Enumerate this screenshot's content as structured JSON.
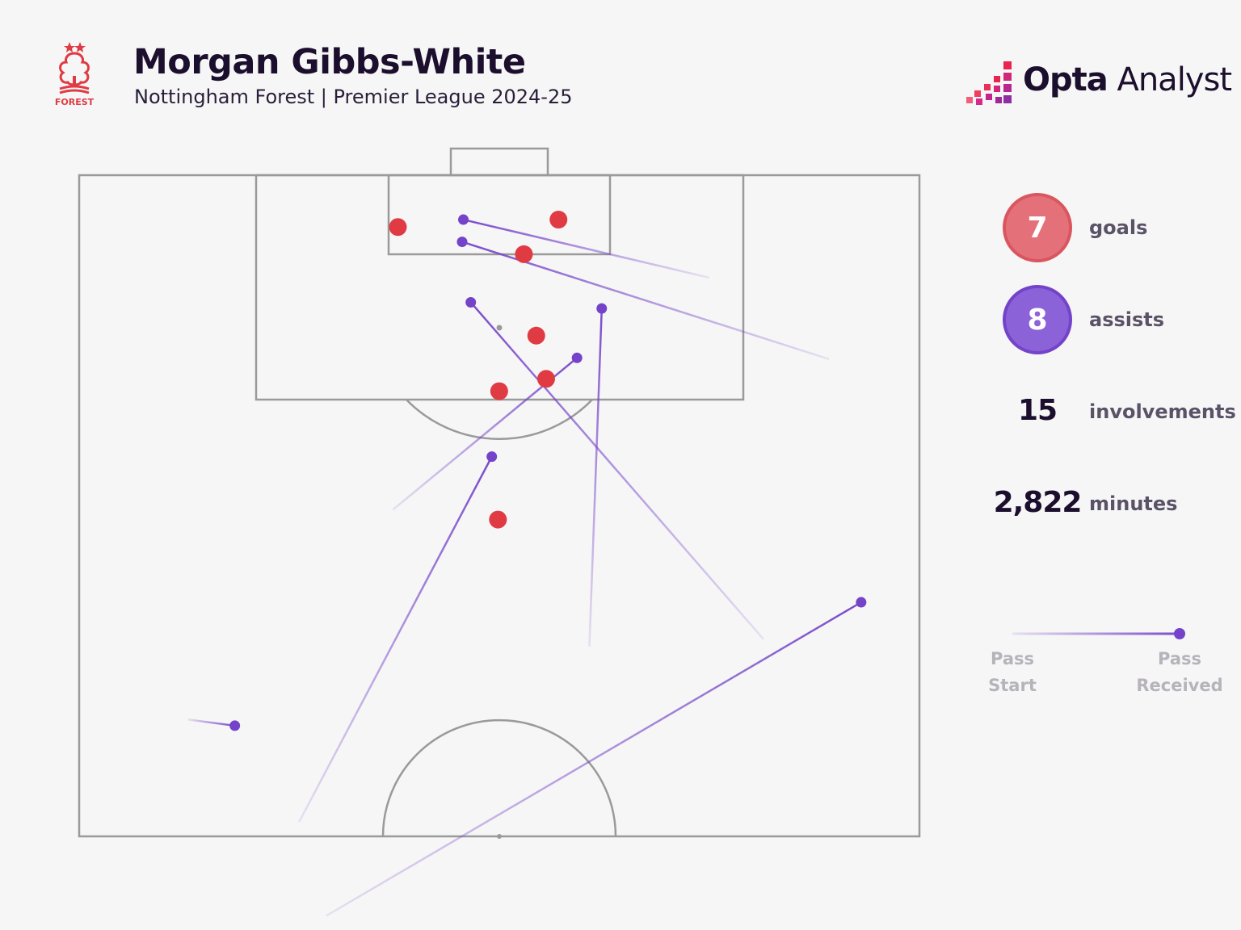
{
  "header": {
    "title": "Morgan Gibbs-White",
    "subtitle": "Nottingham Forest | Premier League 2024-25",
    "club_crest_text": "FOREST",
    "brand_bold": "Opta",
    "brand_light": "Analyst"
  },
  "stats": {
    "goals_value": "7",
    "goals_label": "goals",
    "assists_value": "8",
    "assists_label": "assists",
    "involvements_value": "15",
    "involvements_label": "involvements",
    "minutes_value": "2,822",
    "minutes_label": "minutes"
  },
  "legend": {
    "start_label_1": "Pass",
    "start_label_2": "Start",
    "end_label_1": "Pass",
    "end_label_2": "Received"
  },
  "colors": {
    "background": "#f6f6f6",
    "pitch_lines": "#9a9a9a",
    "goal": "#e03a43",
    "assist": "#7443c9",
    "text": "#1c0f2e",
    "brand_accent": "#e8244f"
  },
  "chart_data": {
    "type": "scatter",
    "title": "Morgan Gibbs-White",
    "subtitle": "Nottingham Forest | Premier League 2024-25",
    "pitch": "attacking half, goal at top, plotted in pitch metres (x across 0-68, y distance from goal line)",
    "goals": [
      {
        "x": 25.8,
        "y": 4.2
      },
      {
        "x": 38.8,
        "y": 3.6
      },
      {
        "x": 36.0,
        "y": 6.4
      },
      {
        "x": 37.0,
        "y": 13.0
      },
      {
        "x": 37.8,
        "y": 16.5
      },
      {
        "x": 34.0,
        "y": 17.5
      },
      {
        "x": 33.9,
        "y": 27.9
      }
    ],
    "assists": [
      {
        "start": {
          "x": 51.0,
          "y": 8.3
        },
        "end": {
          "x": 31.1,
          "y": 3.6
        }
      },
      {
        "start": {
          "x": 60.7,
          "y": 14.9
        },
        "end": {
          "x": 31.0,
          "y": 5.4
        }
      },
      {
        "start": {
          "x": 55.4,
          "y": 37.6
        },
        "end": {
          "x": 31.7,
          "y": 10.3
        }
      },
      {
        "start": {
          "x": 41.3,
          "y": 38.2
        },
        "end": {
          "x": 42.3,
          "y": 10.8
        }
      },
      {
        "start": {
          "x": 25.4,
          "y": 27.1
        },
        "end": {
          "x": 40.3,
          "y": 14.8
        }
      },
      {
        "start": {
          "x": 17.8,
          "y": 52.4
        },
        "end": {
          "x": 33.4,
          "y": 22.8
        }
      },
      {
        "start": {
          "x": 20.0,
          "y": 60.0
        },
        "end": {
          "x": 63.3,
          "y": 34.6
        }
      },
      {
        "start": {
          "x": 8.8,
          "y": 44.1
        },
        "end": {
          "x": 12.6,
          "y": 44.6
        }
      }
    ]
  }
}
